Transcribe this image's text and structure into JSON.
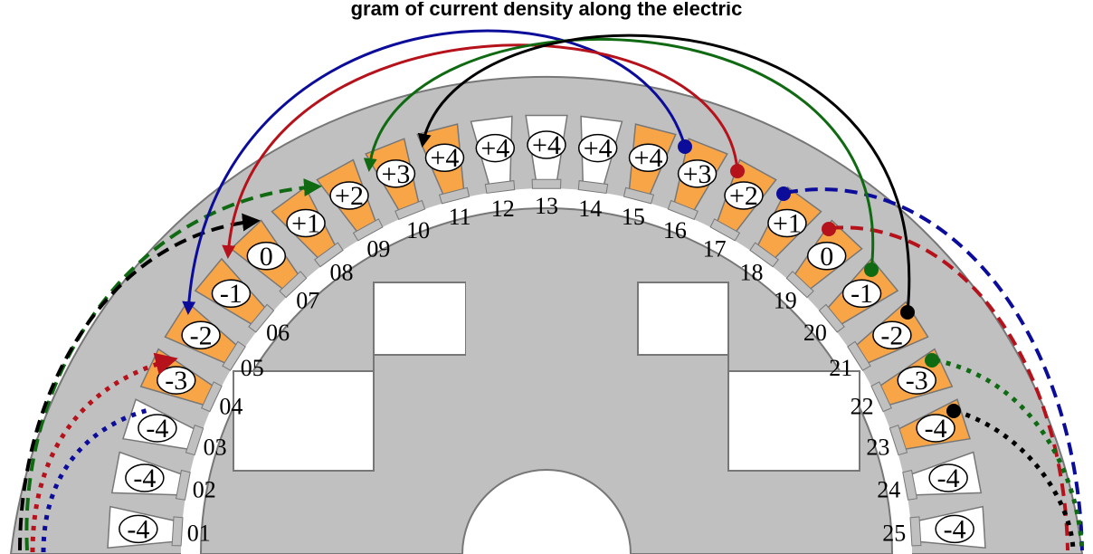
{
  "title": "gram of current density along the electric",
  "colors": {
    "stator": "#c0c0c0",
    "outline": "#777777",
    "active_tooth": "#f8a548",
    "inactive_tooth": "#ffffff",
    "blue": "#0c0c9a",
    "red": "#b5121b",
    "green": "#0f6a12",
    "black": "#000000"
  },
  "slots": [
    {
      "num": "01",
      "value": "-4",
      "active": false
    },
    {
      "num": "02",
      "value": "-4",
      "active": false
    },
    {
      "num": "03",
      "value": "-4",
      "active": false
    },
    {
      "num": "04",
      "value": "-3",
      "active": true
    },
    {
      "num": "05",
      "value": "-2",
      "active": true
    },
    {
      "num": "06",
      "value": "-1",
      "active": true
    },
    {
      "num": "07",
      "value": "0",
      "active": true
    },
    {
      "num": "08",
      "value": "+1",
      "active": true
    },
    {
      "num": "09",
      "value": "+2",
      "active": true
    },
    {
      "num": "10",
      "value": "+3",
      "active": true
    },
    {
      "num": "11",
      "value": "+4",
      "active": true
    },
    {
      "num": "12",
      "value": "+4",
      "active": false
    },
    {
      "num": "13",
      "value": "+4",
      "active": false
    },
    {
      "num": "14",
      "value": "+4",
      "active": false
    },
    {
      "num": "15",
      "value": "+4",
      "active": true
    },
    {
      "num": "16",
      "value": "+3",
      "active": true
    },
    {
      "num": "17",
      "value": "+2",
      "active": true
    },
    {
      "num": "18",
      "value": "+1",
      "active": true
    },
    {
      "num": "19",
      "value": "0",
      "active": true
    },
    {
      "num": "20",
      "value": "-1",
      "active": true
    },
    {
      "num": "21",
      "value": "-2",
      "active": true
    },
    {
      "num": "22",
      "value": "-3",
      "active": true
    },
    {
      "num": "23",
      "value": "-4",
      "active": true
    },
    {
      "num": "24",
      "value": "-4",
      "active": false
    },
    {
      "num": "25",
      "value": "-4",
      "active": false
    }
  ]
}
